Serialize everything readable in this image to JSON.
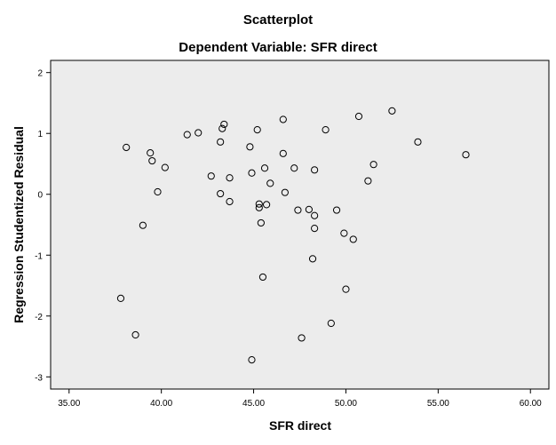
{
  "chart_data": {
    "type": "scatter",
    "title": "Scatterplot",
    "subtitle": "Dependent Variable: SFR direct",
    "xlabel": "SFR direct",
    "ylabel": "Regression Studentized Residual",
    "xlim": [
      34,
      61
    ],
    "ylim": [
      -3.2,
      2.2
    ],
    "xticks": [
      35,
      40,
      45,
      50,
      55,
      60
    ],
    "xtick_labels": [
      "35.00",
      "40.00",
      "45.00",
      "50.00",
      "55.00",
      "60.00"
    ],
    "yticks": [
      2,
      1,
      0,
      -1,
      -2,
      -3
    ],
    "ytick_labels": [
      "2",
      "1",
      "0",
      "-1",
      "-2",
      "-3"
    ],
    "grid": false,
    "points": {
      "x": [
        37.8,
        38.1,
        38.6,
        39.0,
        39.4,
        39.5,
        39.8,
        40.2,
        41.4,
        42.0,
        42.7,
        43.2,
        43.2,
        43.3,
        43.4,
        43.7,
        43.7,
        44.8,
        44.9,
        44.9,
        45.2,
        45.3,
        45.3,
        45.4,
        45.5,
        45.6,
        45.7,
        45.9,
        46.6,
        46.6,
        46.7,
        47.2,
        47.4,
        47.6,
        48.0,
        48.2,
        48.3,
        48.3,
        48.3,
        48.9,
        49.2,
        49.5,
        49.9,
        50.0,
        50.4,
        50.7,
        51.2,
        51.5,
        52.5,
        53.9,
        56.5
      ],
      "y": [
        -1.71,
        0.77,
        -2.31,
        -0.51,
        0.68,
        0.55,
        0.04,
        0.44,
        0.98,
        1.01,
        0.3,
        0.86,
        0.01,
        1.08,
        1.15,
        0.27,
        -0.12,
        0.78,
        0.35,
        -2.72,
        1.06,
        -0.22,
        -0.16,
        -0.47,
        -1.36,
        0.43,
        -0.17,
        0.18,
        1.23,
        0.67,
        0.03,
        0.43,
        -0.26,
        -2.36,
        -0.25,
        -1.06,
        -0.35,
        -0.56,
        0.4,
        1.06,
        -2.12,
        -0.26,
        -0.64,
        -1.56,
        -0.74,
        1.28,
        0.22,
        0.49,
        1.37,
        0.86,
        0.65
      ]
    },
    "colors": {
      "plot_background": "#ececec",
      "marker_stroke": "#000000",
      "axis": "#000000"
    }
  }
}
